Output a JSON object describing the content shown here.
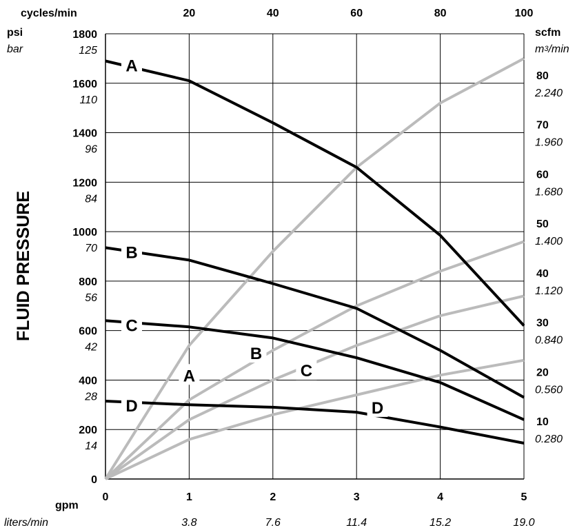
{
  "chart_data": {
    "type": "line",
    "title": "",
    "y_title": "FLUID PRESSURE",
    "x": {
      "unit_primary": "gpm",
      "unit_secondary": "liters/min",
      "range": [
        0,
        5
      ],
      "ticks": [
        0,
        1,
        2,
        3,
        4,
        5
      ],
      "tick_labels": [
        "0",
        "1",
        "2",
        "3",
        "4",
        "5"
      ],
      "secondary_labels": [
        "",
        "3.8",
        "7.6",
        "11.4",
        "15.2",
        "19.0"
      ]
    },
    "x_top": {
      "unit": "cycles/min",
      "ticks_at_gpm": [
        1,
        2,
        3,
        4,
        5
      ],
      "tick_labels": [
        "20",
        "40",
        "60",
        "80",
        "100"
      ]
    },
    "y_left": {
      "unit_primary": "psi",
      "unit_secondary": "bar",
      "range": [
        0,
        1800
      ],
      "ticks": [
        0,
        200,
        400,
        600,
        800,
        1000,
        1200,
        1400,
        1600,
        1800
      ],
      "tick_labels": [
        "0",
        "200",
        "400",
        "600",
        "800",
        "1000",
        "1200",
        "1400",
        "1600",
        "1800"
      ],
      "secondary_labels": [
        "",
        "14",
        "28",
        "42",
        "56",
        "70",
        "84",
        "96",
        "110",
        "125"
      ]
    },
    "y_right": {
      "unit_primary": "scfm",
      "unit_secondary_base": "m",
      "unit_secondary_sup": "3",
      "unit_secondary_rest": "/min",
      "range": [
        0,
        90
      ],
      "ticks": [
        10,
        20,
        30,
        40,
        50,
        60,
        70,
        80
      ],
      "tick_labels": [
        "10",
        "20",
        "30",
        "40",
        "50",
        "60",
        "70",
        "80"
      ],
      "secondary_labels": [
        "0.280",
        "0.560",
        "0.840",
        "1.120",
        "1.400",
        "1.680",
        "1.960",
        "2.240"
      ]
    },
    "grid": true,
    "series": [
      {
        "name": "A",
        "kind": "pressure",
        "color": "#000000",
        "x": [
          1,
          2,
          3,
          4,
          5
        ],
        "y": [
          1610,
          1440,
          1260,
          985,
          620
        ]
      },
      {
        "name": "B",
        "kind": "pressure",
        "color": "#000000",
        "x": [
          1,
          2,
          3,
          4,
          5
        ],
        "y": [
          885,
          790,
          690,
          520,
          330
        ]
      },
      {
        "name": "C",
        "kind": "pressure",
        "color": "#000000",
        "x": [
          1,
          2,
          3,
          4,
          5
        ],
        "y": [
          615,
          570,
          490,
          390,
          240
        ]
      },
      {
        "name": "D",
        "kind": "pressure",
        "color": "#000000",
        "x": [
          1,
          2,
          3,
          4,
          5
        ],
        "y": [
          300,
          290,
          270,
          210,
          145
        ]
      },
      {
        "name": "A",
        "kind": "air",
        "color": "#bbbbbb",
        "x": [
          0,
          1,
          2,
          3,
          4,
          5
        ],
        "y": [
          0,
          27,
          46,
          63,
          76,
          85
        ]
      },
      {
        "name": "B",
        "kind": "air",
        "color": "#bbbbbb",
        "x": [
          0,
          1,
          2,
          3,
          4,
          5
        ],
        "y": [
          0,
          16,
          26,
          35,
          42,
          48
        ]
      },
      {
        "name": "C",
        "kind": "air",
        "color": "#bbbbbb",
        "x": [
          0,
          1,
          2,
          3,
          4,
          5
        ],
        "y": [
          0,
          12,
          20,
          27,
          33,
          37
        ]
      },
      {
        "name": "D",
        "kind": "air",
        "color": "#bbbbbb",
        "x": [
          0,
          1,
          2,
          3,
          4,
          5
        ],
        "y": [
          0,
          8,
          13,
          17,
          21,
          24
        ]
      }
    ],
    "pressure_curve_start_y": {
      "A": 1690,
      "B": 935,
      "C": 640,
      "D": 315
    }
  }
}
